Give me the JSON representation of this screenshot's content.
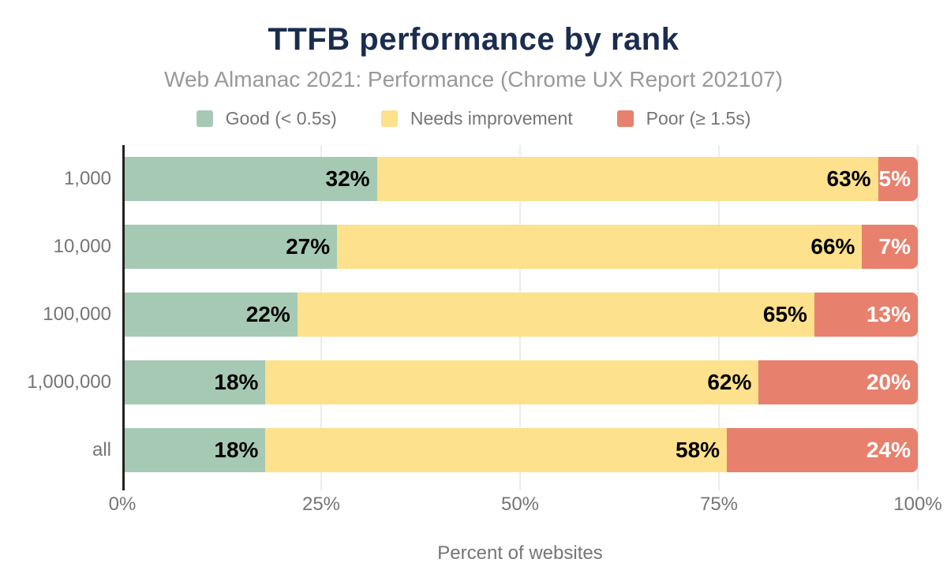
{
  "colors": {
    "background": "#ffffff",
    "title": "#1b2d4e",
    "subtitle": "#999999",
    "text": "#757575",
    "axis": "#212121",
    "grid": "#ececec"
  },
  "chart_data": {
    "type": "bar",
    "orientation": "horizontal",
    "stacked": true,
    "title": "TTFB performance by rank",
    "subtitle": "Web Almanac 2021: Performance (Chrome UX Report 202107)",
    "xlabel": "Percent of websites",
    "xlim": [
      0,
      100
    ],
    "grid": true,
    "legend_position": "top",
    "value_suffix": "%",
    "categories": [
      "1,000",
      "10,000",
      "100,000",
      "1,000,000",
      "all"
    ],
    "series": [
      {
        "name": "Good (< 0.5s)",
        "key": "good",
        "color": "#a6c9b4",
        "label_color": "#000000",
        "values": [
          32,
          27,
          22,
          18,
          18
        ]
      },
      {
        "name": "Needs improvement",
        "key": "needs-improvement",
        "color": "#fde18c",
        "label_color": "#000000",
        "values": [
          63,
          66,
          65,
          62,
          58
        ]
      },
      {
        "name": "Poor (≥ 1.5s)",
        "key": "poor",
        "color": "#e7816e",
        "label_color": "#ffffff",
        "values": [
          5,
          7,
          13,
          20,
          24
        ]
      }
    ],
    "x_ticks": [
      {
        "value": 0,
        "label": "0%"
      },
      {
        "value": 25,
        "label": "25%"
      },
      {
        "value": 50,
        "label": "50%"
      },
      {
        "value": 75,
        "label": "75%"
      },
      {
        "value": 100,
        "label": "100%"
      }
    ]
  }
}
